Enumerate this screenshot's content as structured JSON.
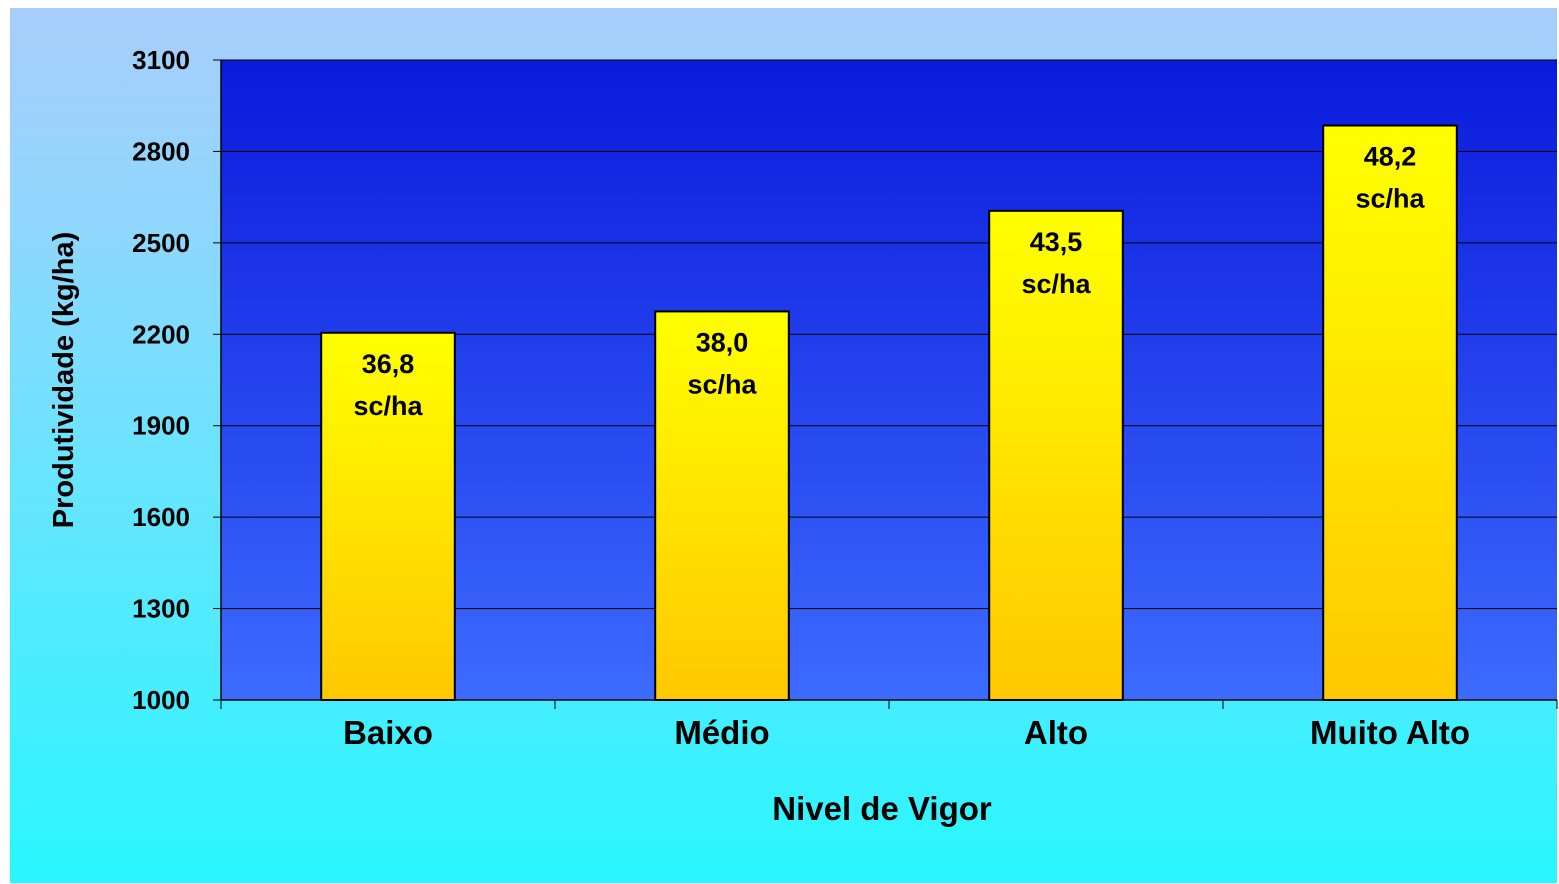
{
  "chart_data": {
    "type": "bar",
    "title": "",
    "xlabel": "Nivel de Vigor",
    "ylabel": "Produtividade (kg/ha)",
    "categories": [
      "Baixo",
      "Médio",
      "Alto",
      "Muito Alto"
    ],
    "values": [
      2205,
      2275,
      2605,
      2885
    ],
    "data_labels": [
      [
        "36,8",
        "sc/ha"
      ],
      [
        "38,0",
        "sc/ha"
      ],
      [
        "43,5",
        "sc/ha"
      ],
      [
        "48,2",
        "sc/ha"
      ]
    ],
    "ylim": [
      1000,
      3100
    ],
    "yticks": [
      "1000",
      "1300",
      "1600",
      "1900",
      "2200",
      "2500",
      "2800",
      "3100"
    ],
    "grid": true,
    "legend": "none",
    "colors": {
      "plot_top": "#0a1adc",
      "plot_bottom": "#3d6bff",
      "bar_top": "#ffff00",
      "bar_bottom": "#ffc800"
    }
  }
}
